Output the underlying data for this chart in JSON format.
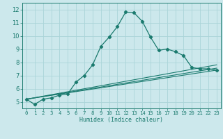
{
  "xlabel": "Humidex (Indice chaleur)",
  "ylabel": "",
  "bg_color": "#cce8ec",
  "grid_color": "#aad4d8",
  "line_color": "#1a7a6e",
  "xlim": [
    -0.5,
    23.5
  ],
  "ylim": [
    4.5,
    12.5
  ],
  "xticks": [
    0,
    1,
    2,
    3,
    4,
    5,
    6,
    7,
    8,
    9,
    10,
    11,
    12,
    13,
    14,
    15,
    16,
    17,
    18,
    19,
    20,
    21,
    22,
    23
  ],
  "yticks": [
    5,
    6,
    7,
    8,
    9,
    10,
    11,
    12
  ],
  "curve1_x": [
    0,
    1,
    2,
    3,
    4,
    5,
    6,
    7,
    8,
    9,
    10,
    11,
    12,
    13,
    14,
    15,
    16,
    17,
    18,
    19,
    20,
    21,
    22,
    23
  ],
  "curve1_y": [
    5.2,
    4.8,
    5.2,
    5.3,
    5.5,
    5.6,
    6.5,
    7.0,
    7.8,
    9.2,
    9.9,
    10.7,
    11.8,
    11.75,
    11.1,
    9.9,
    8.9,
    9.0,
    8.8,
    8.5,
    7.6,
    7.5,
    7.5,
    7.4
  ],
  "curve2_x": [
    0,
    23
  ],
  "curve2_y": [
    5.2,
    7.8
  ],
  "curve3_x": [
    0,
    23
  ],
  "curve3_y": [
    5.2,
    7.55
  ],
  "curve4_x": [
    0,
    23
  ],
  "curve4_y": [
    5.2,
    7.4
  ],
  "xlabel_fontsize": 6.0,
  "tick_fontsize_x": 5.2,
  "tick_fontsize_y": 6.0
}
